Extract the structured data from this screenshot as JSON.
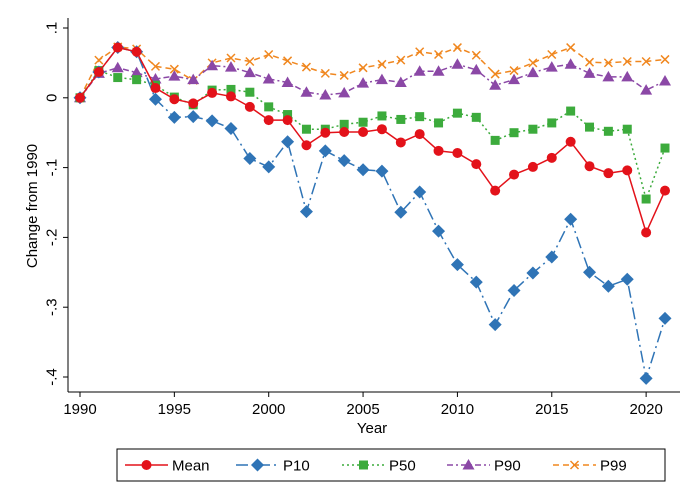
{
  "chart_data": {
    "type": "line",
    "title": "",
    "xlabel": "Year",
    "ylabel": "Change from 1990",
    "xlim": [
      1990,
      2021
    ],
    "ylim": [
      -0.4,
      0.1
    ],
    "x_ticks": [
      1990,
      1995,
      2000,
      2005,
      2010,
      2015,
      2020
    ],
    "y_ticks": [
      0.1,
      0,
      -0.1,
      -0.2,
      -0.3,
      -0.4
    ],
    "y_tick_labels": [
      ".1",
      "0",
      "-.1",
      "-.2",
      "-.3",
      "-.4"
    ],
    "x_tick_labels": [
      "1990",
      "1995",
      "2000",
      "2005",
      "2010",
      "2015",
      "2020"
    ],
    "legend_position": "bottom",
    "x": [
      1990,
      1991,
      1992,
      1993,
      1994,
      1995,
      1996,
      1997,
      1998,
      1999,
      2000,
      2001,
      2002,
      2003,
      2004,
      2005,
      2006,
      2007,
      2008,
      2009,
      2010,
      2011,
      2012,
      2013,
      2014,
      2015,
      2016,
      2017,
      2018,
      2019,
      2020,
      2021
    ],
    "series": [
      {
        "name": "Mean",
        "color": "#e3121a",
        "marker": "circle",
        "dash": "solid",
        "values": [
          0,
          0.037,
          0.072,
          0.066,
          0.014,
          -0.002,
          -0.008,
          0.007,
          0.002,
          -0.013,
          -0.032,
          -0.032,
          -0.068,
          -0.05,
          -0.049,
          -0.049,
          -0.045,
          -0.064,
          -0.052,
          -0.076,
          -0.079,
          -0.095,
          -0.133,
          -0.11,
          -0.099,
          -0.086,
          -0.063,
          -0.098,
          -0.108,
          -0.104,
          -0.193,
          -0.133
        ]
      },
      {
        "name": "P10",
        "color": "#2f74b6",
        "marker": "diamond",
        "dash": "longdash-dot",
        "values": [
          0,
          0.037,
          0.072,
          0.066,
          -0.002,
          -0.028,
          -0.027,
          -0.033,
          -0.044,
          -0.087,
          -0.099,
          -0.063,
          -0.163,
          -0.076,
          -0.09,
          -0.103,
          -0.105,
          -0.164,
          -0.135,
          -0.191,
          -0.239,
          -0.264,
          -0.325,
          -0.276,
          -0.251,
          -0.228,
          -0.174,
          -0.25,
          -0.27,
          -0.26,
          -0.402,
          -0.316
        ]
      },
      {
        "name": "P50",
        "color": "#3cab3c",
        "marker": "square",
        "dash": "dotted",
        "values": [
          0,
          0.039,
          0.029,
          0.026,
          0.018,
          0.001,
          -0.01,
          0.011,
          0.012,
          0.008,
          -0.013,
          -0.024,
          -0.045,
          -0.045,
          -0.038,
          -0.035,
          -0.026,
          -0.031,
          -0.027,
          -0.036,
          -0.022,
          -0.028,
          -0.061,
          -0.05,
          -0.045,
          -0.036,
          -0.019,
          -0.042,
          -0.048,
          -0.045,
          -0.145,
          -0.072
        ]
      },
      {
        "name": "P90",
        "color": "#8b48a6",
        "marker": "triangle",
        "dash": "dash-dot",
        "values": [
          0,
          0.035,
          0.043,
          0.036,
          0.027,
          0.031,
          0.026,
          0.046,
          0.044,
          0.036,
          0.027,
          0.022,
          0.008,
          0.004,
          0.007,
          0.021,
          0.026,
          0.022,
          0.038,
          0.038,
          0.048,
          0.04,
          0.018,
          0.026,
          0.036,
          0.044,
          0.048,
          0.035,
          0.03,
          0.03,
          0.011,
          0.024
        ]
      },
      {
        "name": "P99",
        "color": "#f0871f",
        "marker": "x",
        "dash": "dashed",
        "values": [
          0,
          0.054,
          0.073,
          0.07,
          0.045,
          0.041,
          0.025,
          0.05,
          0.057,
          0.052,
          0.062,
          0.053,
          0.044,
          0.035,
          0.032,
          0.043,
          0.048,
          0.054,
          0.066,
          0.062,
          0.072,
          0.061,
          0.034,
          0.039,
          0.05,
          0.062,
          0.072,
          0.051,
          0.05,
          0.052,
          0.052,
          0.055
        ]
      }
    ]
  }
}
